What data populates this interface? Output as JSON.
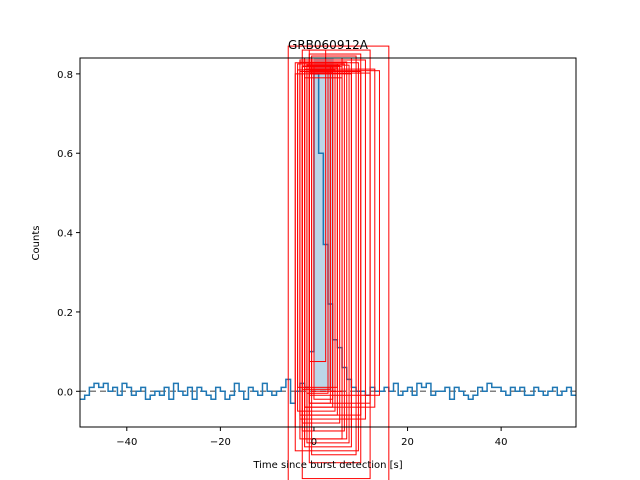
{
  "chart_data": {
    "type": "line",
    "title": "GRB060912A",
    "xlabel": "Time since burst detection [s]",
    "ylabel": "Counts",
    "xlim": [
      -50,
      56
    ],
    "ylim": [
      -0.09,
      0.84
    ],
    "xticks": [
      -40,
      -20,
      0,
      20,
      40
    ],
    "xtick_labels": [
      "−40",
      "−20",
      "0",
      "20",
      "40"
    ],
    "yticks": [
      0.0,
      0.2,
      0.4,
      0.6,
      0.8
    ],
    "ytick_labels": [
      "0.0",
      "0.2",
      "0.4",
      "0.6",
      "0.8"
    ],
    "grid": false,
    "series": [
      {
        "kind": "step",
        "color": "#1f77b4",
        "x": [
          -50,
          -49,
          -48,
          -47,
          -46,
          -45,
          -44,
          -43,
          -42,
          -41,
          -40,
          -39,
          -38,
          -37,
          -36,
          -35,
          -34,
          -33,
          -32,
          -31,
          -30,
          -29,
          -28,
          -27,
          -26,
          -25,
          -24,
          -23,
          -22,
          -21,
          -20,
          -19,
          -18,
          -17,
          -16,
          -15,
          -14,
          -13,
          -12,
          -11,
          -10,
          -9,
          -8,
          -7,
          -6,
          -5,
          -4,
          -3,
          -2,
          -1,
          0,
          1,
          2,
          3,
          4,
          5,
          6,
          7,
          8,
          9,
          10,
          11,
          12,
          13,
          14,
          15,
          16,
          17,
          18,
          19,
          20,
          21,
          22,
          23,
          24,
          25,
          26,
          27,
          28,
          29,
          30,
          31,
          32,
          33,
          34,
          35,
          36,
          37,
          38,
          39,
          40,
          41,
          42,
          43,
          44,
          45,
          46,
          47,
          48,
          49,
          50,
          51,
          52,
          53,
          54,
          55,
          56
        ],
        "y": [
          -0.02,
          -0.01,
          0.01,
          0.02,
          0.01,
          0.02,
          0.0,
          0.01,
          -0.01,
          0.02,
          0.01,
          -0.01,
          0.0,
          0.01,
          -0.02,
          -0.01,
          0.0,
          -0.01,
          0.01,
          -0.02,
          0.02,
          0.0,
          -0.01,
          0.01,
          -0.02,
          0.01,
          0.0,
          -0.01,
          -0.02,
          0.01,
          0.0,
          -0.02,
          -0.01,
          0.02,
          0.0,
          -0.02,
          0.01,
          0.0,
          -0.01,
          0.02,
          0.0,
          -0.01,
          0.0,
          0.01,
          0.03,
          -0.03,
          0.0,
          0.02,
          0.01,
          0.1,
          0.8,
          0.6,
          0.37,
          0.22,
          0.13,
          0.11,
          0.06,
          0.03,
          0.01,
          0.0,
          0.0,
          -0.01,
          0.01,
          0.0,
          0.0,
          0.01,
          0.0,
          0.02,
          -0.01,
          0.0,
          0.01,
          -0.01,
          0.02,
          0.01,
          0.02,
          -0.01,
          0.0,
          0.0,
          0.01,
          -0.02,
          0.01,
          0.0,
          -0.01,
          -0.02,
          -0.01,
          0.01,
          0.0,
          0.02,
          0.01,
          0.01,
          0.0,
          -0.01,
          0.01,
          0.0,
          0.01,
          -0.01,
          -0.01,
          0.01,
          0.0,
          -0.01,
          0.0,
          0.01,
          -0.01,
          0.0,
          0.01,
          -0.01,
          0.0
        ]
      }
    ],
    "baseline": {
      "y": 0,
      "style": "dashed",
      "color": "#808080"
    },
    "shaded_region": {
      "x": [
        0,
        4.2
      ],
      "color": "#1f77b4",
      "alpha": 0.3
    },
    "annotation_boxes": {
      "color": "#ff0000",
      "boxes": [
        [
          -5.5,
          16,
          -0.26,
          0.87
        ],
        [
          -2.5,
          12,
          -0.22,
          0.86
        ],
        [
          -1,
          10,
          -0.18,
          0.85
        ],
        [
          -0.5,
          9,
          -0.16,
          0.845
        ],
        [
          -2,
          8,
          -0.14,
          0.84
        ],
        [
          -3,
          7,
          -0.12,
          0.83
        ],
        [
          -1.5,
          6.5,
          -0.1,
          0.825
        ],
        [
          -2.5,
          5.5,
          -0.08,
          0.82
        ],
        [
          -1,
          5,
          -0.06,
          0.815
        ],
        [
          -3.5,
          4.5,
          -0.05,
          0.81
        ],
        [
          -2,
          4,
          -0.04,
          0.805
        ],
        [
          -1,
          3.5,
          -0.03,
          0.8
        ],
        [
          0,
          4,
          -0.02,
          0.82
        ],
        [
          -2.5,
          6,
          -0.1,
          0.818
        ],
        [
          -1.5,
          7.5,
          -0.13,
          0.822
        ],
        [
          -4,
          9.5,
          -0.15,
          0.828
        ],
        [
          -3,
          11,
          -0.07,
          0.835
        ],
        [
          -2,
          13,
          -0.04,
          0.812
        ],
        [
          -1,
          14,
          -0.01,
          0.808
        ],
        [
          -0.5,
          6,
          0.0,
          0.84
        ],
        [
          -1.5,
          3,
          -0.005,
          0.81
        ],
        [
          -2.5,
          3.5,
          0.005,
          0.82
        ],
        [
          -3.5,
          5,
          0.01,
          0.825
        ],
        [
          -1,
          2.5,
          0.075,
          0.86
        ],
        [
          -2,
          6,
          -0.12,
          0.79
        ],
        [
          -4,
          8,
          -0.09,
          0.8
        ],
        [
          -3,
          10,
          -0.06,
          0.806
        ],
        [
          -1,
          12,
          -0.03,
          0.802
        ]
      ]
    }
  }
}
